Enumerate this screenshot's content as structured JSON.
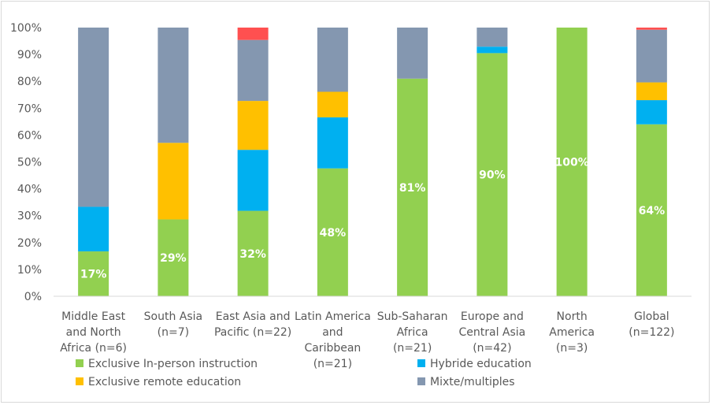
{
  "chart_data": {
    "type": "bar",
    "stacked": true,
    "categories": [
      [
        "Middle East",
        "and North",
        "Africa (n=6)"
      ],
      [
        "South Asia",
        "(n=7)"
      ],
      [
        "East Asia and",
        "Pacific (n=22)"
      ],
      [
        "Latin America",
        "and",
        "Caribbean",
        "(n=21)"
      ],
      [
        "Sub-Saharan",
        "Africa",
        "(n=21)"
      ],
      [
        "Europe and",
        "Central Asia",
        "(n=42)"
      ],
      [
        "North",
        "America",
        "(n=3)"
      ],
      [
        "Global",
        "(n=122)"
      ]
    ],
    "series": [
      {
        "name": "Exclusive In-person instruction",
        "color": "#92d050",
        "values": [
          16.7,
          28.6,
          31.8,
          47.6,
          81.0,
          90.5,
          100.0,
          64.0
        ],
        "labels": [
          "17%",
          "29%",
          "32%",
          "48%",
          "81%",
          "90%",
          "100%",
          "64%"
        ]
      },
      {
        "name": "Hybride education",
        "color": "#00b0f0",
        "values": [
          16.6,
          0.0,
          22.7,
          19.0,
          0.0,
          2.4,
          0.0,
          9.0
        ],
        "labels": [
          "",
          "",
          "",
          "",
          "",
          "",
          "",
          ""
        ]
      },
      {
        "name": "Exclusive remote education",
        "color": "#ffc000",
        "values": [
          0.0,
          28.5,
          18.2,
          9.5,
          0.0,
          0.0,
          0.0,
          6.6
        ],
        "labels": [
          "",
          "",
          "",
          "",
          "",
          "",
          "",
          ""
        ]
      },
      {
        "name": "Mixte/multiples",
        "color": "#8497b0",
        "values": [
          66.7,
          42.9,
          22.7,
          23.9,
          19.0,
          7.1,
          0.0,
          19.6
        ],
        "labels": [
          "",
          "",
          "",
          "",
          "",
          "",
          "",
          ""
        ]
      },
      {
        "name": "",
        "color": "#ff5050",
        "values": [
          0.0,
          0.0,
          4.6,
          0.0,
          0.0,
          0.0,
          0.0,
          0.8
        ],
        "labels": [
          "",
          "",
          "",
          "",
          "",
          "",
          "",
          ""
        ]
      }
    ],
    "ylim": [
      0,
      100
    ],
    "yticks": [
      "0%",
      "10%",
      "20%",
      "30%",
      "40%",
      "50%",
      "60%",
      "70%",
      "80%",
      "90%",
      "100%"
    ],
    "grid": false,
    "legend_position": "bottom-left"
  }
}
